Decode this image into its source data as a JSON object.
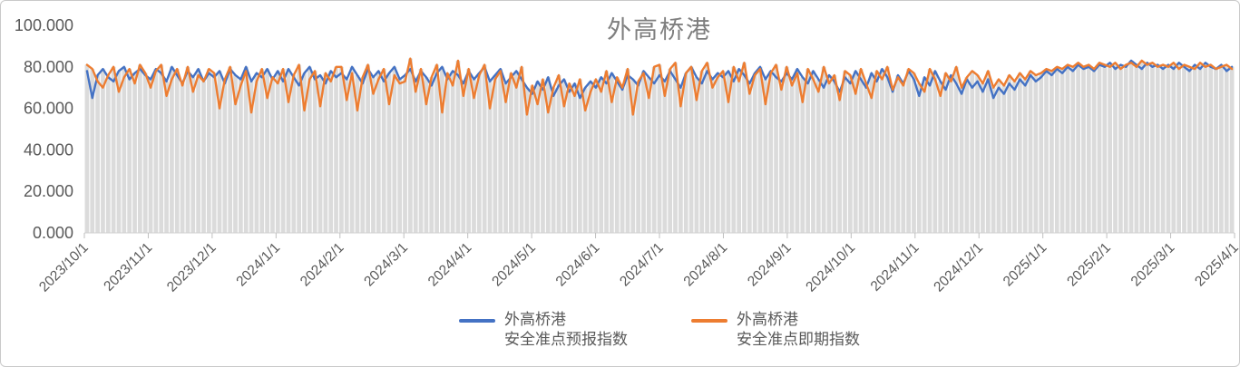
{
  "title": {
    "text": "外高桥港"
  },
  "colors": {
    "forecast_line": "#4472C4",
    "spot_line": "#ED7D31",
    "background_columns": "#DBDBDB",
    "axis_line": "#D0D0D0",
    "tick_mark": "#BFBFBF",
    "axis_label": "#595959",
    "title": "#7F7F7F"
  },
  "legend": {
    "items": [
      {
        "line1": "外高桥港",
        "line2": "安全准点预报指数",
        "color": "#4472C4"
      },
      {
        "line1": "外高桥港",
        "line2": "安全准点即期指数",
        "color": "#ED7D31"
      }
    ]
  },
  "chart_data": {
    "type": "line",
    "title": "外高桥港",
    "xlabel": "",
    "ylabel": "",
    "ylim": [
      0,
      100
    ],
    "grid": false,
    "legend_position": "bottom-center",
    "y_tick_labels": [
      "0.000",
      "20.000",
      "40.000",
      "60.000",
      "80.000",
      "100.000"
    ],
    "x_tick_labels": [
      "2023/10/1",
      "2023/11/1",
      "2023/12/1",
      "2024/1/1",
      "2024/2/1",
      "2024/3/1",
      "2024/4/1",
      "2024/5/1",
      "2024/6/1",
      "2024/7/1",
      "2024/8/1",
      "2024/9/1",
      "2024/10/1",
      "2024/11/1",
      "2024/12/1",
      "2025/1/1",
      "2025/2/1",
      "2025/3/1",
      "2025/4/1"
    ],
    "background_columns": {
      "color": "#DBDBDB",
      "represents": "upper envelope of the two line series, drawn as gray columns from 0"
    },
    "series": [
      {
        "name": "外高桥港安全准点预报指数",
        "type": "line",
        "color": "#4472C4",
        "values": [
          78,
          65,
          76,
          79,
          75,
          73,
          78,
          80,
          74,
          77,
          79,
          76,
          74,
          79,
          77,
          73,
          80,
          76,
          72,
          78,
          75,
          79,
          73,
          77,
          75,
          78,
          72,
          79,
          76,
          74,
          80,
          73,
          77,
          75,
          79,
          74,
          78,
          73,
          79,
          75,
          71,
          77,
          80,
          74,
          76,
          72,
          78,
          75,
          77,
          74,
          80,
          76,
          72,
          79,
          75,
          78,
          73,
          77,
          80,
          74,
          76,
          79,
          73,
          78,
          75,
          71,
          77,
          80,
          74,
          78,
          76,
          72,
          78,
          74,
          77,
          80,
          73,
          76,
          79,
          72,
          75,
          78,
          74,
          70,
          67,
          73,
          69,
          75,
          66,
          71,
          74,
          68,
          72,
          65,
          70,
          73,
          70,
          75,
          72,
          77,
          73,
          69,
          76,
          74,
          71,
          78,
          75,
          72,
          76,
          73,
          78,
          74,
          70,
          77,
          80,
          75,
          72,
          78,
          74,
          77,
          75,
          78,
          73,
          79,
          76,
          72,
          77,
          80,
          74,
          78,
          75,
          73,
          77,
          74,
          79,
          75,
          72,
          78,
          74,
          70,
          76,
          73,
          68,
          75,
          72,
          78,
          74,
          70,
          77,
          73,
          79,
          75,
          68,
          76,
          72,
          78,
          74,
          66,
          75,
          71,
          78,
          73,
          69,
          76,
          72,
          67,
          74,
          70,
          73,
          68,
          74,
          65,
          70,
          67,
          72,
          69,
          74,
          71,
          76,
          73,
          75,
          78,
          76,
          79,
          77,
          80,
          78,
          81,
          79,
          80,
          78,
          81,
          80,
          82,
          79,
          81,
          80,
          83,
          81,
          79,
          82,
          80,
          81,
          79,
          81,
          79,
          82,
          80,
          78,
          81,
          79,
          82,
          80,
          79,
          81,
          78,
          80
        ]
      },
      {
        "name": "外高桥港安全准点即期指数",
        "type": "line",
        "color": "#ED7D31",
        "values": [
          81,
          79,
          73,
          70,
          76,
          80,
          68,
          75,
          79,
          72,
          81,
          77,
          70,
          78,
          81,
          66,
          74,
          79,
          71,
          80,
          68,
          76,
          73,
          79,
          77,
          60,
          74,
          80,
          62,
          71,
          78,
          58,
          73,
          79,
          65,
          75,
          72,
          79,
          63,
          76,
          81,
          59,
          74,
          78,
          61,
          77,
          73,
          80,
          80,
          64,
          77,
          59,
          75,
          81,
          67,
          74,
          79,
          62,
          76,
          72,
          73,
          84,
          68,
          79,
          62,
          75,
          81,
          58,
          77,
          71,
          83,
          66,
          79,
          65,
          76,
          81,
          60,
          74,
          78,
          63,
          77,
          70,
          80,
          57,
          71,
          62,
          74,
          58,
          70,
          76,
          61,
          72,
          66,
          74,
          59,
          68,
          74,
          68,
          78,
          63,
          75,
          70,
          79,
          57,
          73,
          77,
          65,
          80,
          81,
          66,
          79,
          82,
          61,
          77,
          80,
          64,
          78,
          82,
          70,
          75,
          78,
          63,
          80,
          73,
          82,
          67,
          76,
          79,
          62,
          77,
          81,
          69,
          80,
          71,
          77,
          63,
          79,
          74,
          68,
          80,
          72,
          76,
          64,
          78,
          76,
          67,
          79,
          72,
          65,
          78,
          74,
          80,
          69,
          75,
          71,
          79,
          77,
          72,
          68,
          79,
          74,
          66,
          77,
          73,
          80,
          70,
          75,
          78,
          76,
          72,
          78,
          70,
          74,
          71,
          76,
          73,
          77,
          74,
          78,
          76,
          77,
          79,
          78,
          80,
          79,
          81,
          80,
          82,
          80,
          81,
          79,
          82,
          81,
          80,
          82,
          79,
          81,
          82,
          80,
          83,
          81,
          82,
          80,
          81,
          80,
          82,
          79,
          81,
          80,
          79,
          82,
          80,
          81,
          79,
          80,
          81,
          79
        ]
      }
    ]
  }
}
